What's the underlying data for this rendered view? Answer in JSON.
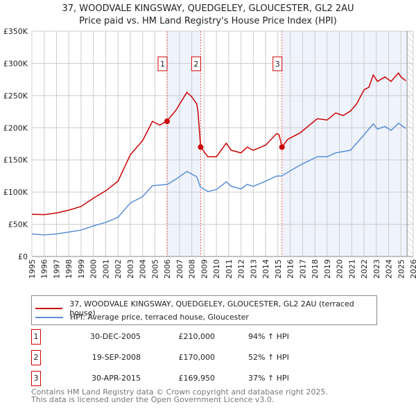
{
  "chart_data": {
    "type": "line",
    "title": "37, WOODVALE KINGSWAY, QUEDGELEY, GLOUCESTER, GL2 2AU",
    "subtitle": "Price paid vs. HM Land Registry's House Price Index (HPI)",
    "xlim": [
      1995,
      2026
    ],
    "ylim": [
      0,
      350000
    ],
    "x_ticks": [
      "1995",
      "1996",
      "1997",
      "1998",
      "1999",
      "2000",
      "2001",
      "2002",
      "2003",
      "2004",
      "2005",
      "2006",
      "2007",
      "2008",
      "2009",
      "2010",
      "2011",
      "2012",
      "2013",
      "2014",
      "2015",
      "2016",
      "2017",
      "2018",
      "2019",
      "2020",
      "2021",
      "2022",
      "2023",
      "2024",
      "2025",
      "2026"
    ],
    "y_ticks": [
      {
        "v": 0,
        "label": "£0"
      },
      {
        "v": 50000,
        "label": "£50K"
      },
      {
        "v": 100000,
        "label": "£100K"
      },
      {
        "v": 150000,
        "label": "£150K"
      },
      {
        "v": 200000,
        "label": "£200K"
      },
      {
        "v": 250000,
        "label": "£250K"
      },
      {
        "v": 300000,
        "label": "£300K"
      },
      {
        "v": 350000,
        "label": "£350K"
      }
    ],
    "grid": true,
    "series": [
      {
        "name": "37, WOODVALE KINGSWAY, QUEDGELEY, GLOUCESTER, GL2 2AU (terraced house)",
        "color": "#cc0000",
        "x": [
          1995,
          1996,
          1997,
          1998,
          1999,
          2000,
          2001,
          2002,
          2003,
          2004,
          2004.8,
          2005.4,
          2006,
          2006.7,
          2007.6,
          2008,
          2008.4,
          2008.5,
          2008.72,
          2009.3,
          2010,
          2010.8,
          2011.2,
          2012,
          2012.5,
          2013,
          2014,
          2014.9,
          2015.1,
          2015.33,
          2015.8,
          2016.8,
          2018.2,
          2019,
          2019.7,
          2020.3,
          2020.9,
          2021.4,
          2022,
          2022.4,
          2022.75,
          2023.1,
          2023.7,
          2024.2,
          2024.6,
          2024.8,
          2025,
          2025.4
        ],
        "y": [
          65500,
          65000,
          67600,
          72000,
          77700,
          90600,
          102000,
          117000,
          158000,
          180000,
          210000,
          204000,
          211000,
          227000,
          255000,
          248000,
          237000,
          225000,
          170000,
          155000,
          155000,
          176000,
          165000,
          161000,
          170000,
          165000,
          173000,
          191000,
          189000,
          169950,
          182000,
          192000,
          214000,
          212000,
          223000,
          219000,
          226000,
          237000,
          259000,
          263000,
          282000,
          272000,
          279000,
          272000,
          281000,
          285000,
          279000,
          273000
        ]
      },
      {
        "name": "HPI: Average price, terraced house, Gloucester",
        "color": "#5b8fd6",
        "x": [
          1995,
          1996,
          1997,
          1998,
          1999,
          2000,
          2001,
          2002,
          2003,
          2004,
          2004.8,
          2006,
          2006.7,
          2007.6,
          2008.4,
          2008.7,
          2009.3,
          2010,
          2010.8,
          2011.2,
          2012,
          2012.5,
          2013,
          2014,
          2014.9,
          2015.3,
          2016.8,
          2018.2,
          2019,
          2019.7,
          2020.9,
          2022,
          2022.75,
          2023.1,
          2023.7,
          2024.2,
          2024.8,
          2025.4
        ],
        "y": [
          35000,
          33500,
          35000,
          38000,
          41000,
          47500,
          53000,
          61000,
          83000,
          93000,
          110000,
          112000,
          120000,
          132000,
          124000,
          108000,
          101000,
          104000,
          116000,
          109000,
          105000,
          112000,
          109000,
          117000,
          125000,
          125000,
          142000,
          155000,
          155000,
          161000,
          165000,
          189000,
          206000,
          198000,
          202000,
          196000,
          207000,
          199000
        ]
      }
    ],
    "sales": [
      {
        "label": "1",
        "x": 2005.99,
        "y": 210000,
        "date": "30-DEC-2005",
        "price": "£210,000",
        "hpi": "94% ↑ HPI"
      },
      {
        "label": "2",
        "x": 2008.72,
        "y": 170000,
        "date": "19-SEP-2008",
        "price": "£170,000",
        "hpi": "52% ↑ HPI"
      },
      {
        "label": "3",
        "x": 2015.33,
        "y": 169950,
        "date": "30-APR-2015",
        "price": "£169,950",
        "hpi": "37% ↑ HPI"
      }
    ],
    "shaded_ranges": [
      [
        2005.99,
        2008.72
      ],
      [
        2015.33,
        2025.5
      ]
    ],
    "hatched_range": [
      2025.5,
      2026
    ],
    "legend_placement": "below"
  },
  "legend": {
    "red": "37, WOODVALE KINGSWAY, QUEDGELEY, GLOUCESTER, GL2 2AU (terraced house)",
    "blue": "HPI: Average price, terraced house, Gloucester"
  },
  "footer": {
    "line1": "Contains HM Land Registry data © Crown copyright and database right 2025.",
    "line2": "This data is licensed under the Open Government Licence v3.0."
  }
}
